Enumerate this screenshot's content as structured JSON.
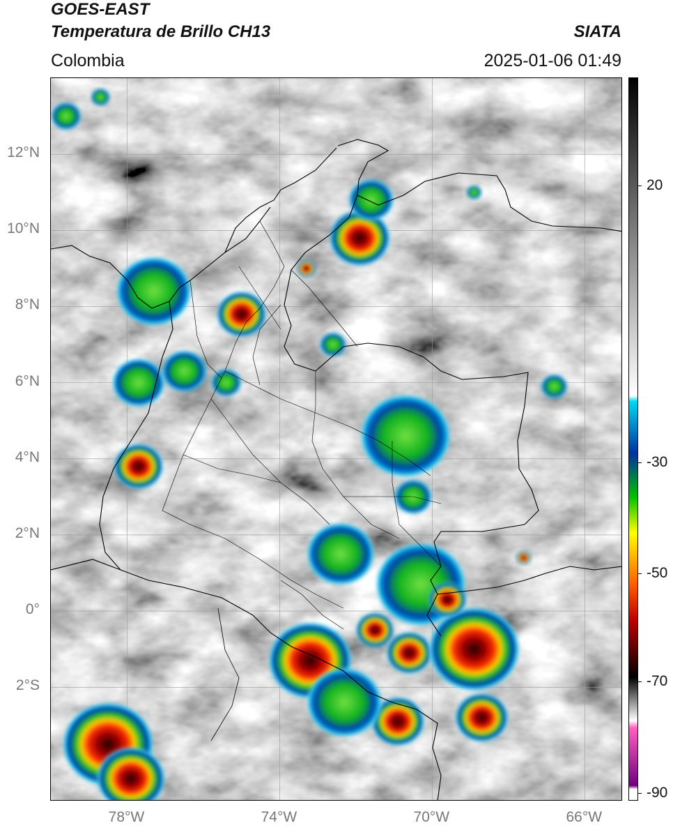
{
  "header": {
    "title_line1": "GOES-EAST",
    "title_line2": "Temperatura de Brillo CH13",
    "region": "Colombia",
    "organization": "SIATA",
    "datetime": "2025-01-06 01:49"
  },
  "map": {
    "lon_range": [
      -80,
      -65
    ],
    "lat_range": [
      -5,
      14
    ],
    "lat_ticks": [
      {
        "value": 12,
        "label": "12°N"
      },
      {
        "value": 10,
        "label": "10°N"
      },
      {
        "value": 8,
        "label": "8°N"
      },
      {
        "value": 6,
        "label": "6°N"
      },
      {
        "value": 4,
        "label": "4°N"
      },
      {
        "value": 2,
        "label": "2°N"
      },
      {
        "value": 0,
        "label": "0°"
      },
      {
        "value": -2,
        "label": "2°S"
      }
    ],
    "lon_ticks": [
      {
        "value": -78,
        "label": "78°W"
      },
      {
        "value": -74,
        "label": "74°W"
      },
      {
        "value": -70,
        "label": "70°W"
      },
      {
        "value": -66,
        "label": "66°W"
      }
    ],
    "grid": true,
    "storm_cells": [
      {
        "lon": -71.9,
        "lat": 9.8,
        "r": 0.8,
        "intensity": 0.9
      },
      {
        "lon": -71.6,
        "lat": 10.8,
        "r": 0.6,
        "intensity": 0.35
      },
      {
        "lon": -73.3,
        "lat": 9.0,
        "r": 0.25,
        "intensity": 0.6
      },
      {
        "lon": -75.0,
        "lat": 7.8,
        "r": 0.65,
        "intensity": 0.75
      },
      {
        "lon": -77.3,
        "lat": 8.4,
        "r": 1.0,
        "intensity": 0.35
      },
      {
        "lon": -77.7,
        "lat": 6.0,
        "r": 0.7,
        "intensity": 0.35
      },
      {
        "lon": -76.5,
        "lat": 6.3,
        "r": 0.6,
        "intensity": 0.3
      },
      {
        "lon": -75.4,
        "lat": 6.0,
        "r": 0.4,
        "intensity": 0.35
      },
      {
        "lon": -77.7,
        "lat": 3.8,
        "r": 0.65,
        "intensity": 0.55
      },
      {
        "lon": -72.6,
        "lat": 7.0,
        "r": 0.35,
        "intensity": 0.3
      },
      {
        "lon": -70.7,
        "lat": 4.6,
        "r": 1.2,
        "intensity": 0.35
      },
      {
        "lon": -70.5,
        "lat": 3.0,
        "r": 0.5,
        "intensity": 0.3
      },
      {
        "lon": -72.4,
        "lat": 1.5,
        "r": 0.9,
        "intensity": 0.4
      },
      {
        "lon": -70.3,
        "lat": 0.7,
        "r": 1.2,
        "intensity": 0.45
      },
      {
        "lon": -73.2,
        "lat": -1.3,
        "r": 1.1,
        "intensity": 0.95
      },
      {
        "lon": -71.5,
        "lat": -0.5,
        "r": 0.5,
        "intensity": 0.8
      },
      {
        "lon": -70.6,
        "lat": -1.1,
        "r": 0.6,
        "intensity": 0.85
      },
      {
        "lon": -68.9,
        "lat": -1.0,
        "r": 1.2,
        "intensity": 0.95
      },
      {
        "lon": -68.7,
        "lat": -2.8,
        "r": 0.7,
        "intensity": 0.85
      },
      {
        "lon": -70.9,
        "lat": -2.9,
        "r": 0.7,
        "intensity": 0.9
      },
      {
        "lon": -72.3,
        "lat": -2.4,
        "r": 1.0,
        "intensity": 0.4
      },
      {
        "lon": -69.6,
        "lat": 0.3,
        "r": 0.5,
        "intensity": 0.7
      },
      {
        "lon": -78.5,
        "lat": -3.5,
        "r": 1.2,
        "intensity": 0.55
      },
      {
        "lon": -77.9,
        "lat": -4.4,
        "r": 0.9,
        "intensity": 0.9
      },
      {
        "lon": -67.6,
        "lat": 1.4,
        "r": 0.2,
        "intensity": 0.7
      },
      {
        "lon": -66.8,
        "lat": 5.9,
        "r": 0.35,
        "intensity": 0.3
      },
      {
        "lon": -68.9,
        "lat": 11.0,
        "r": 0.2,
        "intensity": 0.3
      },
      {
        "lon": -79.6,
        "lat": 13.0,
        "r": 0.4,
        "intensity": 0.28
      },
      {
        "lon": -78.7,
        "lat": 13.5,
        "r": 0.25,
        "intensity": 0.28
      }
    ]
  },
  "colorbar": {
    "ticks": [
      {
        "value": 20,
        "label": "20",
        "frac": 0.1495
      },
      {
        "value": -30,
        "label": "-30",
        "frac": 0.5323
      },
      {
        "value": -50,
        "label": "-50",
        "frac": 0.6857
      },
      {
        "value": -70,
        "label": "-70",
        "frac": 0.8354
      },
      {
        "value": -90,
        "label": "-90",
        "frac": 0.9893
      }
    ],
    "stops": [
      {
        "frac": 0.0,
        "color": "#000000"
      },
      {
        "frac": 0.15,
        "color": "#5a5a5a"
      },
      {
        "frac": 0.44,
        "color": "#ffffff"
      },
      {
        "frac": 0.448,
        "color": "#00d8f0"
      },
      {
        "frac": 0.52,
        "color": "#0030a0"
      },
      {
        "frac": 0.58,
        "color": "#00c000"
      },
      {
        "frac": 0.63,
        "color": "#ffff00"
      },
      {
        "frac": 0.7,
        "color": "#ff6000"
      },
      {
        "frac": 0.75,
        "color": "#c00000"
      },
      {
        "frac": 0.83,
        "color": "#000000"
      },
      {
        "frac": 0.89,
        "color": "#ffffff"
      },
      {
        "frac": 0.9,
        "color": "#ff60c0"
      },
      {
        "frac": 0.98,
        "color": "#700080"
      },
      {
        "frac": 0.985,
        "color": "#ffffff"
      },
      {
        "frac": 1.0,
        "color": "#ffffff"
      }
    ]
  }
}
